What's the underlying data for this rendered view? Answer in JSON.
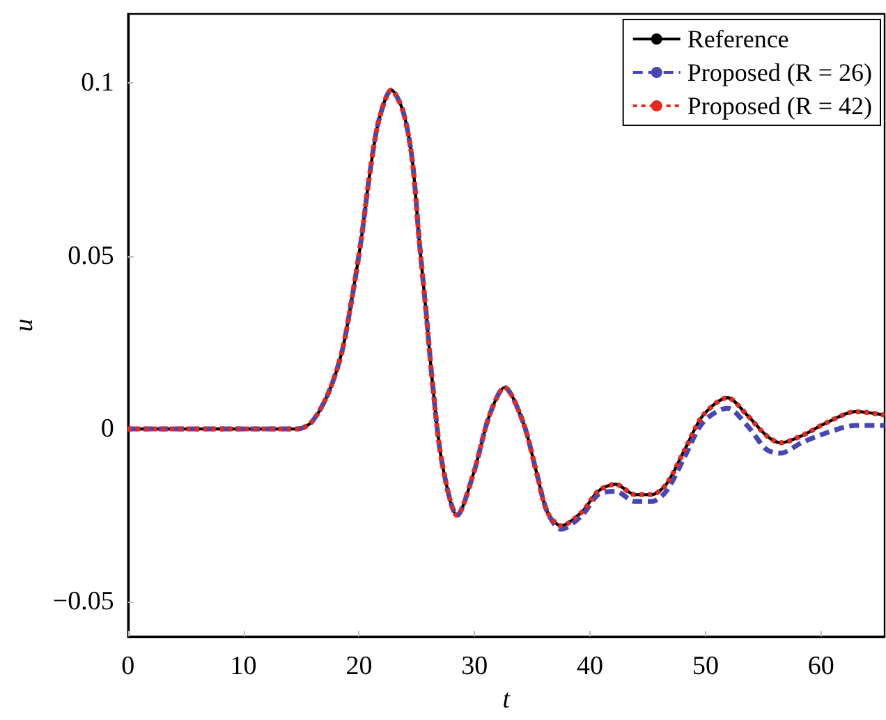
{
  "chart_data": {
    "type": "line",
    "xlabel": "t",
    "ylabel": "u",
    "x": [
      0,
      5,
      10,
      14,
      14.7,
      15.9,
      17.3,
      18.5,
      19.4,
      20.2,
      20.9,
      21.7,
      22.8,
      23.8,
      24.6,
      25.2,
      25.8,
      26.4,
      27.2,
      28.5,
      29.9,
      31.3,
      32.6,
      34.2,
      35.4,
      36.3,
      37.5,
      39.3,
      40.7,
      42.2,
      43.9,
      45.3,
      46.6,
      48.2,
      49.8,
      51.9,
      53.6,
      55.3,
      56.5,
      58.3,
      60.6,
      63.0,
      65.5
    ],
    "series": [
      {
        "name": "Reference",
        "color": "#000000",
        "line_style": "solid",
        "values": [
          0,
          0,
          0,
          0,
          0,
          0.002,
          0.01,
          0.022,
          0.038,
          0.055,
          0.073,
          0.089,
          0.098,
          0.092,
          0.078,
          0.055,
          0.034,
          0.012,
          -0.01,
          -0.025,
          -0.013,
          0.004,
          0.012,
          0.002,
          -0.013,
          -0.024,
          -0.028,
          -0.024,
          -0.018,
          -0.016,
          -0.019,
          -0.019,
          -0.016,
          -0.006,
          0.004,
          0.009,
          0.004,
          -0.002,
          -0.004,
          -0.002,
          0.002,
          0.005,
          0.004
        ]
      },
      {
        "name": "Proposed (R = 26)",
        "color": "#4646b4",
        "line_style": "dashed",
        "values": [
          0,
          0,
          0,
          0,
          0,
          0.002,
          0.01,
          0.022,
          0.038,
          0.055,
          0.073,
          0.089,
          0.098,
          0.092,
          0.078,
          0.055,
          0.034,
          0.012,
          -0.01,
          -0.025,
          -0.013,
          0.004,
          0.012,
          0.002,
          -0.013,
          -0.024,
          -0.029,
          -0.025,
          -0.019,
          -0.018,
          -0.021,
          -0.021,
          -0.018,
          -0.008,
          0.002,
          0.006,
          0.001,
          -0.006,
          -0.007,
          -0.004,
          -0.001,
          0.001,
          0.001
        ]
      },
      {
        "name": "Proposed (R = 42)",
        "color": "#e8281c",
        "line_style": "dotted",
        "values": [
          0,
          0,
          0,
          0,
          0,
          0.002,
          0.01,
          0.022,
          0.038,
          0.055,
          0.073,
          0.089,
          0.098,
          0.092,
          0.078,
          0.055,
          0.034,
          0.012,
          -0.01,
          -0.025,
          -0.013,
          0.004,
          0.012,
          0.002,
          -0.013,
          -0.024,
          -0.028,
          -0.024,
          -0.018,
          -0.016,
          -0.019,
          -0.019,
          -0.016,
          -0.006,
          0.004,
          0.009,
          0.004,
          -0.002,
          -0.004,
          -0.002,
          0.002,
          0.005,
          0.004
        ]
      }
    ],
    "xlim": [
      0,
      65.5
    ],
    "xticks": [
      0,
      10,
      20,
      30,
      40,
      50,
      60
    ],
    "ylim": [
      -0.06,
      0.12
    ],
    "yticks": [
      {
        "value": -0.05,
        "label": "−0.05"
      },
      0,
      0.05,
      0.1
    ],
    "grid": false,
    "legend": "top right",
    "marker": "none"
  }
}
